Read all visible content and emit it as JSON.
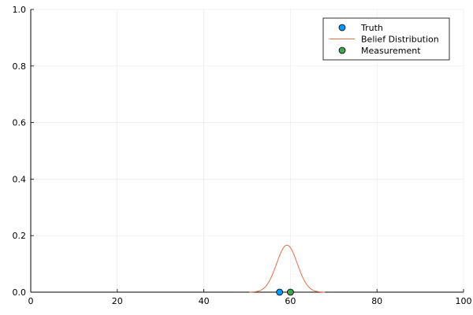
{
  "chart_data": {
    "type": "line",
    "title": "",
    "xlabel": "",
    "ylabel": "",
    "xlim": [
      0,
      100
    ],
    "ylim": [
      0,
      1
    ],
    "x_ticks": [
      0,
      20,
      40,
      60,
      80,
      100
    ],
    "y_ticks": [
      0.0,
      0.2,
      0.4,
      0.6,
      0.8,
      1.0
    ],
    "x_tick_labels": [
      "0",
      "20",
      "40",
      "60",
      "80",
      "100"
    ],
    "y_tick_labels": [
      "0.0",
      "0.2",
      "0.4",
      "0.6",
      "0.8",
      "1.0"
    ],
    "grid": true,
    "legend_position": "top-right",
    "series": [
      {
        "name": "Truth",
        "kind": "scatter",
        "color": "#009AFA",
        "points": [
          {
            "x": 57.5,
            "y": 0
          }
        ]
      },
      {
        "name": "Belief Distribution",
        "kind": "line",
        "color": "#E26F46",
        "gaussian": {
          "mean": 59.2,
          "std": 2.4,
          "x_range": [
            50.5,
            68
          ]
        }
      },
      {
        "name": "Measurement",
        "kind": "scatter",
        "color": "#3EA44E",
        "points": [
          {
            "x": 60,
            "y": 0
          }
        ]
      }
    ]
  }
}
